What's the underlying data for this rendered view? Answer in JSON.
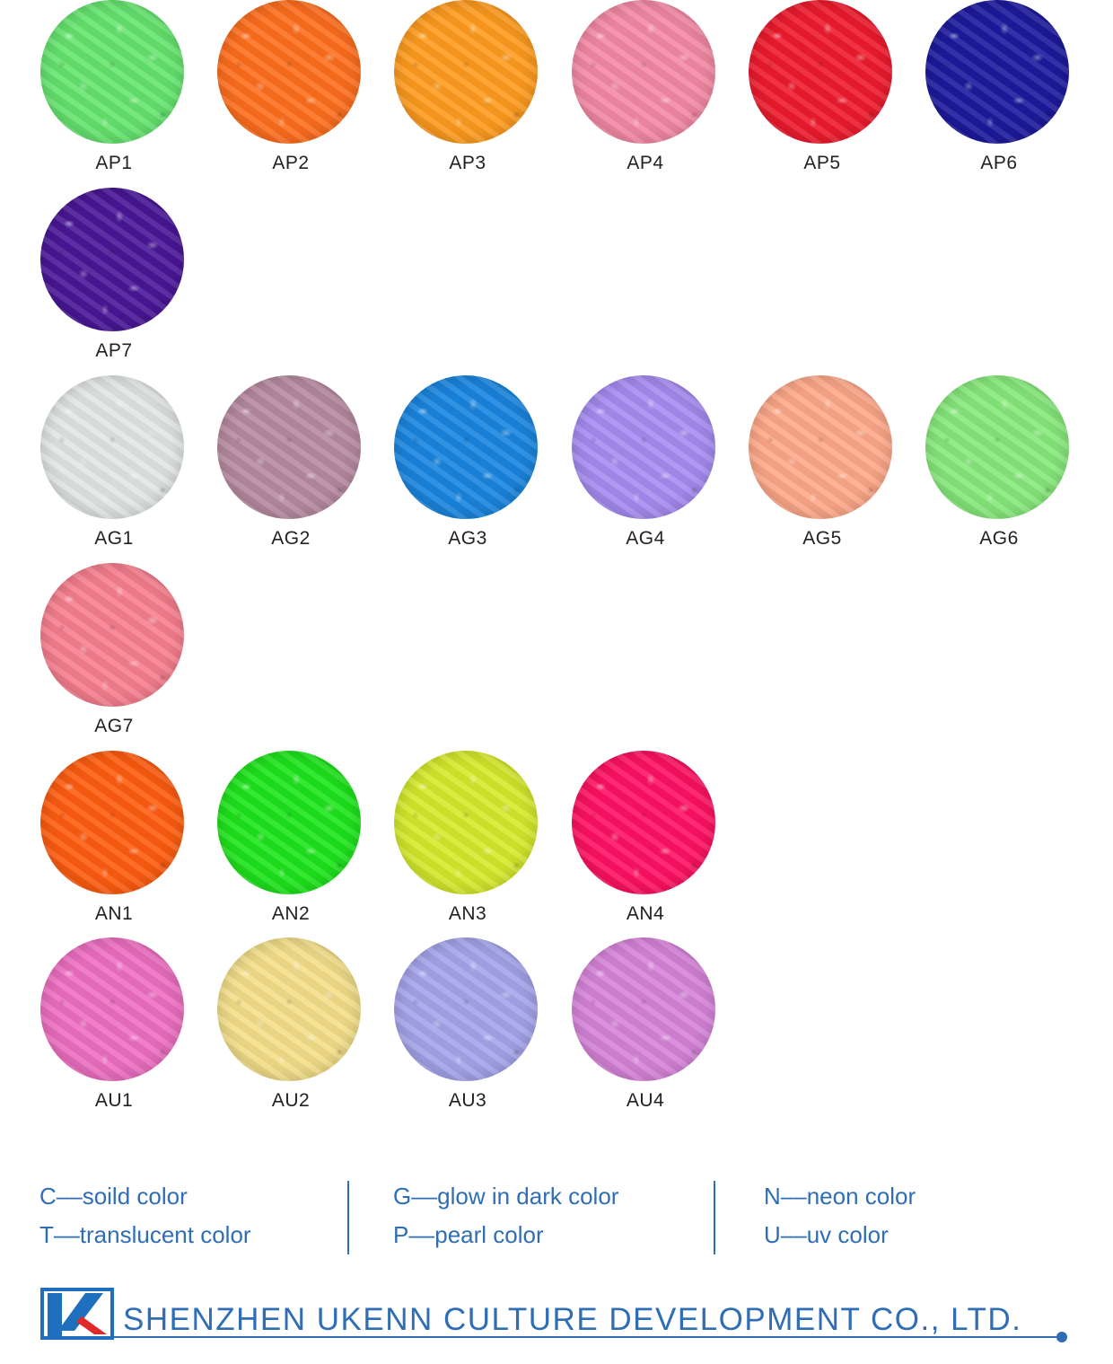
{
  "swatches": [
    {
      "code": "AP1",
      "color": "#66e56f"
    },
    {
      "code": "AP2",
      "color": "#ff6f1e"
    },
    {
      "code": "AP3",
      "color": "#ff9c1f"
    },
    {
      "code": "AP4",
      "color": "#f58aa5"
    },
    {
      "code": "AP5",
      "color": "#ef1b2e"
    },
    {
      "code": "AP6",
      "color": "#1d1a9e"
    },
    {
      "code": "AP7",
      "color": "#4a1798"
    },
    {
      "code": "AG1",
      "color": "#e2e6e4"
    },
    {
      "code": "AG2",
      "color": "#b88ba1"
    },
    {
      "code": "AG3",
      "color": "#1a86e0"
    },
    {
      "code": "AG4",
      "color": "#a78cf2"
    },
    {
      "code": "AG5",
      "color": "#ffa98a"
    },
    {
      "code": "AG6",
      "color": "#88ea7c"
    },
    {
      "code": "AG7",
      "color": "#f87f8f"
    },
    {
      "code": "AN1",
      "color": "#ff5d10"
    },
    {
      "code": "AN2",
      "color": "#1ee51c"
    },
    {
      "code": "AN3",
      "color": "#d6ea2c"
    },
    {
      "code": "AN4",
      "color": "#ff1263"
    },
    {
      "code": "AU1",
      "color": "#ee6fc2"
    },
    {
      "code": "AU2",
      "color": "#f4df8a"
    },
    {
      "code": "AU3",
      "color": "#a5a5ec"
    },
    {
      "code": "AU4",
      "color": "#d784d9"
    }
  ],
  "legend": [
    [
      "C––soild color",
      "T––translucent color"
    ],
    [
      "G––glow in dark color",
      "P––pearl color"
    ],
    [
      "N––neon color",
      "U––uv color"
    ]
  ],
  "footer": {
    "company": "SHENZHEN UKENN CULTURE DEVELOPMENT CO., LTD.",
    "logo_colors": {
      "blue": "#1f6fbf",
      "red": "#e02a2a"
    }
  },
  "colors": {
    "accent": "#2f6eb5",
    "label": "#222222"
  }
}
